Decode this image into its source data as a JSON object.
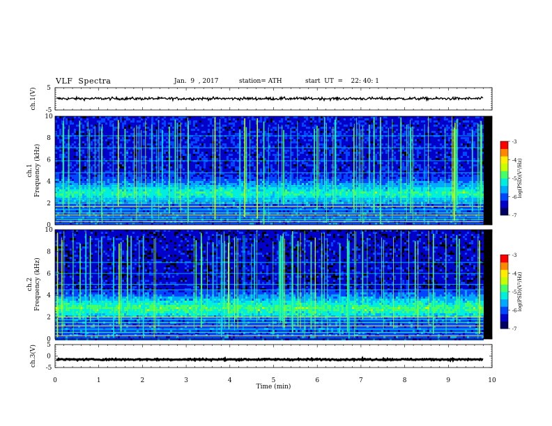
{
  "header": {
    "title": "VLF  Spectra",
    "date": "Jan.  9  , 2017",
    "station": "station= ATH",
    "start_ut": "start  UT  =    22: 40: 1"
  },
  "colors": {
    "colormap": [
      "#000000",
      "#000064",
      "#0000c8",
      "#0046ff",
      "#00aaff",
      "#00eedd",
      "#44ff66",
      "#c8ff00",
      "#ffee00",
      "#ff8800",
      "#ff0000",
      "#ffffff"
    ],
    "trace": "#000000",
    "background": "#ffffff"
  },
  "chart_data": [
    {
      "type": "line",
      "name": "ch1-waveform",
      "ylabel": "ch.1(V)",
      "xlim": [
        0,
        10
      ],
      "ylim": [
        -5,
        5
      ],
      "yticks": [
        "5",
        "-5"
      ],
      "x_end": 9.8,
      "level": 0.1,
      "noise_amplitude": 0.6
    },
    {
      "type": "heatmap",
      "name": "ch1-spectrogram",
      "ylabel_line1": "ch.1",
      "ylabel_line2": "Frequency  (kHz)",
      "xlim": [
        0,
        10
      ],
      "ylim": [
        0,
        10
      ],
      "yticks": [
        "0",
        "2",
        "4",
        "6",
        "8",
        "10"
      ],
      "x_end": 9.8,
      "colorbar": {
        "label": "log(PSD)(V²/Hz)",
        "range": [
          -7,
          -3
        ],
        "ticks": [
          "-3",
          "-4",
          "-5",
          "-6",
          "-7"
        ]
      },
      "features": {
        "hiss_band_khz": [
          2,
          5
        ],
        "hiss_peak_khz": 3,
        "hiss_peak_log_psd": -5,
        "background_log_psd": -6.3,
        "horizontal_lines_khz": [
          0.3,
          0.5,
          0.7,
          0.9,
          1.1,
          1.4,
          1.7,
          2.0,
          2.4,
          3.5,
          4.8,
          5.9,
          7.1,
          8.2
        ],
        "spherics": "vertical broadband impulsive lines across 0-10 kHz"
      }
    },
    {
      "type": "heatmap",
      "name": "ch2-spectrogram",
      "ylabel_line1": "ch.2",
      "ylabel_line2": "Frequency  (kHz)",
      "xlim": [
        0,
        10
      ],
      "ylim": [
        0,
        10
      ],
      "yticks": [
        "0",
        "2",
        "4",
        "6",
        "8",
        "10"
      ],
      "x_end": 9.8,
      "colorbar": {
        "label": "log(PSD)(V²/Hz)",
        "range": [
          -7,
          -3
        ],
        "ticks": [
          "-3",
          "-4",
          "-5",
          "-6",
          "-7"
        ]
      },
      "features": {
        "hiss_band_khz": [
          1.8,
          4.6
        ],
        "hiss_peak_khz": 2.9,
        "hiss_peak_log_psd": -4.8,
        "background_log_psd": -6.4,
        "horizontal_lines_khz": [
          0.3,
          0.6,
          0.9,
          1.2,
          1.5,
          1.8,
          2.0,
          4.5,
          5.0,
          6.0,
          7.0
        ],
        "spherics": "vertical broadband impulsive lines across 0-10 kHz"
      }
    },
    {
      "type": "line",
      "name": "ch3-waveform",
      "ylabel": "ch.3(V)",
      "xlim": [
        0,
        10
      ],
      "ylim": [
        -5,
        5
      ],
      "yticks": [
        "5",
        "0",
        "-5"
      ],
      "x_end": 9.8,
      "level": -1.5,
      "noise_amplitude": 0.3
    }
  ],
  "xaxis": {
    "label": "Time  (min)",
    "ticks": [
      "0",
      "1",
      "2",
      "3",
      "4",
      "5",
      "6",
      "7",
      "8",
      "9",
      "10"
    ]
  }
}
